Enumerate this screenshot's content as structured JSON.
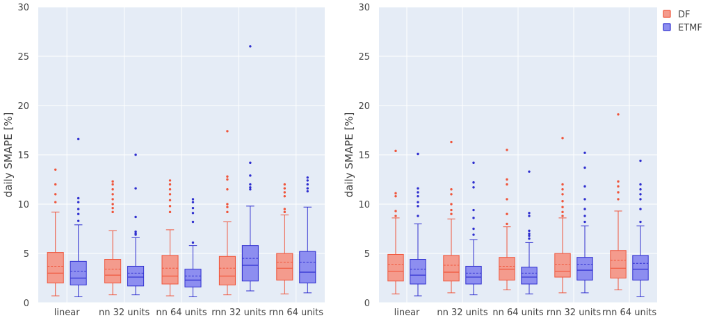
{
  "colors": {
    "plot_bg": "#e5ecf6",
    "grid": "#ffffff",
    "DF": "#ef553b",
    "DF_fill": "#f49b8d",
    "ETMF": "#2e2ecf",
    "ETMF_fill": "#8d8ef0"
  },
  "legend": {
    "items": [
      {
        "name": "DF",
        "color_key": "DF"
      },
      {
        "name": "ETMF",
        "color_key": "ETMF"
      }
    ]
  },
  "chart_data": [
    {
      "type": "box",
      "ylabel": "daily SMAPE [%]",
      "ylim": [
        0,
        30
      ],
      "yticks": [
        0,
        5,
        10,
        15,
        20,
        25,
        30
      ],
      "categories": [
        "linear",
        "nn 32 units",
        "nn 64 units",
        "rnn 32 units",
        "rnn 64 units"
      ],
      "series": [
        {
          "name": "DF",
          "boxes": [
            {
              "min": 0.7,
              "q1": 2.0,
              "median": 3.0,
              "mean": 3.7,
              "q3": 5.1,
              "max": 9.2,
              "outliers": [
                10.2,
                11.0,
                12.0,
                13.5
              ]
            },
            {
              "min": 0.8,
              "q1": 2.0,
              "median": 2.8,
              "mean": 3.4,
              "q3": 4.4,
              "max": 7.3,
              "outliers": [
                9.2,
                9.6,
                10.0,
                10.5,
                11.0,
                11.5,
                12.0,
                12.3
              ]
            },
            {
              "min": 0.7,
              "q1": 1.9,
              "median": 2.7,
              "mean": 3.5,
              "q3": 4.8,
              "max": 7.4,
              "outliers": [
                9.2,
                9.8,
                10.4,
                11.0,
                11.5,
                12.0,
                12.4
              ]
            },
            {
              "min": 0.8,
              "q1": 1.8,
              "median": 2.7,
              "mean": 3.5,
              "q3": 4.7,
              "max": 8.2,
              "outliers": [
                9.2,
                9.7,
                10.0,
                11.5,
                12.5,
                12.8,
                17.4
              ]
            },
            {
              "min": 0.9,
              "q1": 2.3,
              "median": 3.5,
              "mean": 4.1,
              "q3": 5.0,
              "max": 8.9,
              "outliers": [
                9.2,
                9.5,
                10.8,
                11.2,
                11.6,
                12.0
              ]
            }
          ]
        },
        {
          "name": "ETMF",
          "boxes": [
            {
              "min": 0.6,
              "q1": 1.8,
              "median": 2.5,
              "mean": 3.2,
              "q3": 4.2,
              "max": 7.9,
              "outliers": [
                8.3,
                9.0,
                9.5,
                10.2,
                10.6,
                16.6
              ]
            },
            {
              "min": 0.8,
              "q1": 1.7,
              "median": 2.6,
              "mean": 3.0,
              "q3": 3.7,
              "max": 6.6,
              "outliers": [
                6.9,
                7.0,
                7.2,
                8.7,
                11.6,
                15.0
              ]
            },
            {
              "min": 0.6,
              "q1": 1.6,
              "median": 2.3,
              "mean": 2.7,
              "q3": 3.4,
              "max": 5.8,
              "outliers": [
                6.1,
                8.2,
                9.1,
                9.6,
                10.2,
                10.5
              ]
            },
            {
              "min": 1.2,
              "q1": 2.2,
              "median": 3.8,
              "mean": 4.5,
              "q3": 5.8,
              "max": 9.8,
              "outliers": [
                11.5,
                11.7,
                12.0,
                12.9,
                14.2,
                26.0
              ]
            },
            {
              "min": 1.0,
              "q1": 2.0,
              "median": 3.1,
              "mean": 4.1,
              "q3": 5.2,
              "max": 9.7,
              "outliers": [
                11.3,
                11.6,
                12.0,
                12.4,
                12.7
              ]
            }
          ]
        }
      ]
    },
    {
      "type": "box",
      "ylabel": "daily SMAPE [%]",
      "ylim": [
        0,
        30
      ],
      "yticks": [
        0,
        5,
        10,
        15,
        20,
        25,
        30
      ],
      "categories": [
        "linear",
        "nn 32 units",
        "nn 64 units",
        "rnn 32 units",
        "rnn 64 units"
      ],
      "series": [
        {
          "name": "DF",
          "boxes": [
            {
              "min": 0.9,
              "q1": 2.2,
              "median": 3.2,
              "mean": 3.9,
              "q3": 4.9,
              "max": 8.6,
              "outliers": [
                8.8,
                9.3,
                10.8,
                11.1,
                15.4
              ]
            },
            {
              "min": 1.0,
              "q1": 2.2,
              "median": 3.1,
              "mean": 3.8,
              "q3": 4.8,
              "max": 8.5,
              "outliers": [
                9.0,
                9.4,
                10.0,
                11.0,
                11.5,
                16.3
              ]
            },
            {
              "min": 1.3,
              "q1": 2.3,
              "median": 3.4,
              "mean": 3.7,
              "q3": 4.6,
              "max": 7.7,
              "outliers": [
                8.0,
                9.0,
                10.5,
                12.0,
                12.5,
                15.5
              ]
            },
            {
              "min": 1.0,
              "q1": 2.6,
              "median": 3.2,
              "mean": 3.9,
              "q3": 5.0,
              "max": 8.6,
              "outliers": [
                8.8,
                9.2,
                9.7,
                10.3,
                11.0,
                11.5,
                12.0,
                16.7
              ]
            },
            {
              "min": 1.3,
              "q1": 2.5,
              "median": 3.5,
              "mean": 4.3,
              "q3": 5.3,
              "max": 9.3,
              "outliers": [
                10.5,
                11.2,
                11.8,
                12.3,
                19.1
              ]
            }
          ]
        },
        {
          "name": "ETMF",
          "boxes": [
            {
              "min": 0.7,
              "q1": 1.9,
              "median": 2.8,
              "mean": 3.4,
              "q3": 4.4,
              "max": 8.0,
              "outliers": [
                8.8,
                9.8,
                10.2,
                10.8,
                11.2,
                11.6,
                15.1
              ]
            },
            {
              "min": 0.8,
              "q1": 1.9,
              "median": 2.6,
              "mean": 3.0,
              "q3": 3.7,
              "max": 6.4,
              "outliers": [
                6.9,
                7.5,
                8.6,
                9.4,
                11.7,
                12.2,
                14.2
              ]
            },
            {
              "min": 0.9,
              "q1": 1.9,
              "median": 2.6,
              "mean": 3.0,
              "q3": 3.6,
              "max": 6.1,
              "outliers": [
                6.5,
                6.8,
                7.0,
                7.3,
                8.8,
                9.1,
                13.3
              ]
            },
            {
              "min": 1.0,
              "q1": 2.3,
              "median": 3.3,
              "mean": 3.9,
              "q3": 4.6,
              "max": 7.8,
              "outliers": [
                8.2,
                8.8,
                9.5,
                10.5,
                11.8,
                13.7,
                15.2
              ]
            },
            {
              "min": 0.6,
              "q1": 2.3,
              "median": 3.4,
              "mean": 4.0,
              "q3": 4.8,
              "max": 7.8,
              "outliers": [
                8.2,
                9.5,
                10.5,
                11.0,
                11.5,
                12.0,
                14.4
              ]
            }
          ]
        }
      ]
    }
  ]
}
